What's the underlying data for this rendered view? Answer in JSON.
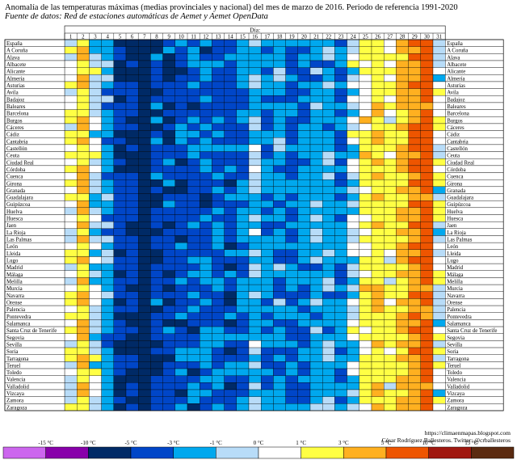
{
  "title": "Anomalía de las temperaturas máximas (medias provinciales y nacional) del mes de marzo de 2016. Periodo de referencia 1991-2020",
  "subtitle": "Fuente de datos: Red de estaciones automáticas de Aemet y Aemet OpenData",
  "credit_url": "https://climaenmapas.blogspot.com",
  "credit_author": "César Rodríguez Ballesteros. Twitter: @crballesteros",
  "chart_data": {
    "type": "heatmap",
    "title": "Anomalía de las temperaturas máximas (medias provinciales y nacional) del mes de marzo de 2016. Periodo de referencia 1991-2020",
    "xlabel": "Día",
    "days": [
      1,
      2,
      3,
      4,
      5,
      6,
      7,
      8,
      9,
      10,
      11,
      12,
      13,
      14,
      15,
      16,
      17,
      18,
      19,
      20,
      21,
      22,
      23,
      24,
      25,
      26,
      27,
      28,
      29,
      30,
      31
    ],
    "provinces": [
      "España",
      "A Coruña",
      "Alava",
      "Albacete",
      "Alicante",
      "Almería",
      "Asturias",
      "Avila",
      "Badajoz",
      "Baleares",
      "Barcelona",
      "Burgos",
      "Cáceres",
      "Cádiz",
      "Cantabria",
      "Castellón",
      "Ceuta",
      "Ciudad Real",
      "Córdoba",
      "Cuenca",
      "Girona",
      "Granada",
      "Guadalajara",
      "Guipúzcoa",
      "Huelva",
      "Huesca",
      "Jaen",
      "La Rioja",
      "Las Palmas",
      "León",
      "Lleida",
      "Lugo",
      "Madrid",
      "Málaga",
      "Melilla",
      "Murcia",
      "Navarra",
      "Orense",
      "Palencia",
      "Pontevedra",
      "Salamanca",
      "Santa Cruz de Tenerife",
      "Segovia",
      "Sevilla",
      "Soria",
      "Tarragona",
      "Teruel",
      "Toledo",
      "Valencia",
      "Valladolid",
      "Vizcaya",
      "Zamora",
      "Zaragoza"
    ],
    "day_profile_celsius": [
      0.6,
      2.8,
      -0.4,
      -1.8,
      -4.6,
      -5.2,
      -6.6,
      -4.2,
      -4.4,
      -4.0,
      -3.8,
      -3.6,
      -3.2,
      -3.6,
      -2.8,
      -1.2,
      -2.6,
      -2.4,
      -3.2,
      -3.0,
      -1.6,
      -1.8,
      -2.6,
      -0.4,
      1.6,
      2.6,
      1.4,
      3.2,
      4.6,
      6.4,
      0.4
    ],
    "legend_ticks": [
      "-15 °C",
      "-10 °C",
      "-5 °C",
      "-3 °C",
      "-1 °C",
      "0 °C",
      "1 °C",
      "3 °C",
      "5 °C",
      "10 °C",
      "15 °C"
    ],
    "color_scale": [
      {
        "range": "< -15 °C",
        "color": "#cc66ee"
      },
      {
        "range": "-15 a -10 °C",
        "color": "#8800aa"
      },
      {
        "range": "-10 a -5 °C",
        "color": "#002a66"
      },
      {
        "range": "-5 a -3 °C",
        "color": "#0046c8"
      },
      {
        "range": "-3 a -1 °C",
        "color": "#00a8ee"
      },
      {
        "range": "-1 a 0 °C",
        "color": "#b8dcf8"
      },
      {
        "range": "0 a 1 °C",
        "color": "#ffffff"
      },
      {
        "range": "1 a 3 °C",
        "color": "#ffff44"
      },
      {
        "range": "3 a 5 °C",
        "color": "#ffb020"
      },
      {
        "range": "5 a 10 °C",
        "color": "#ee5500"
      },
      {
        "range": "10 a 15 °C",
        "color": "#a01810"
      },
      {
        "range": "> 15 °C",
        "color": "#5a2a10"
      }
    ]
  }
}
